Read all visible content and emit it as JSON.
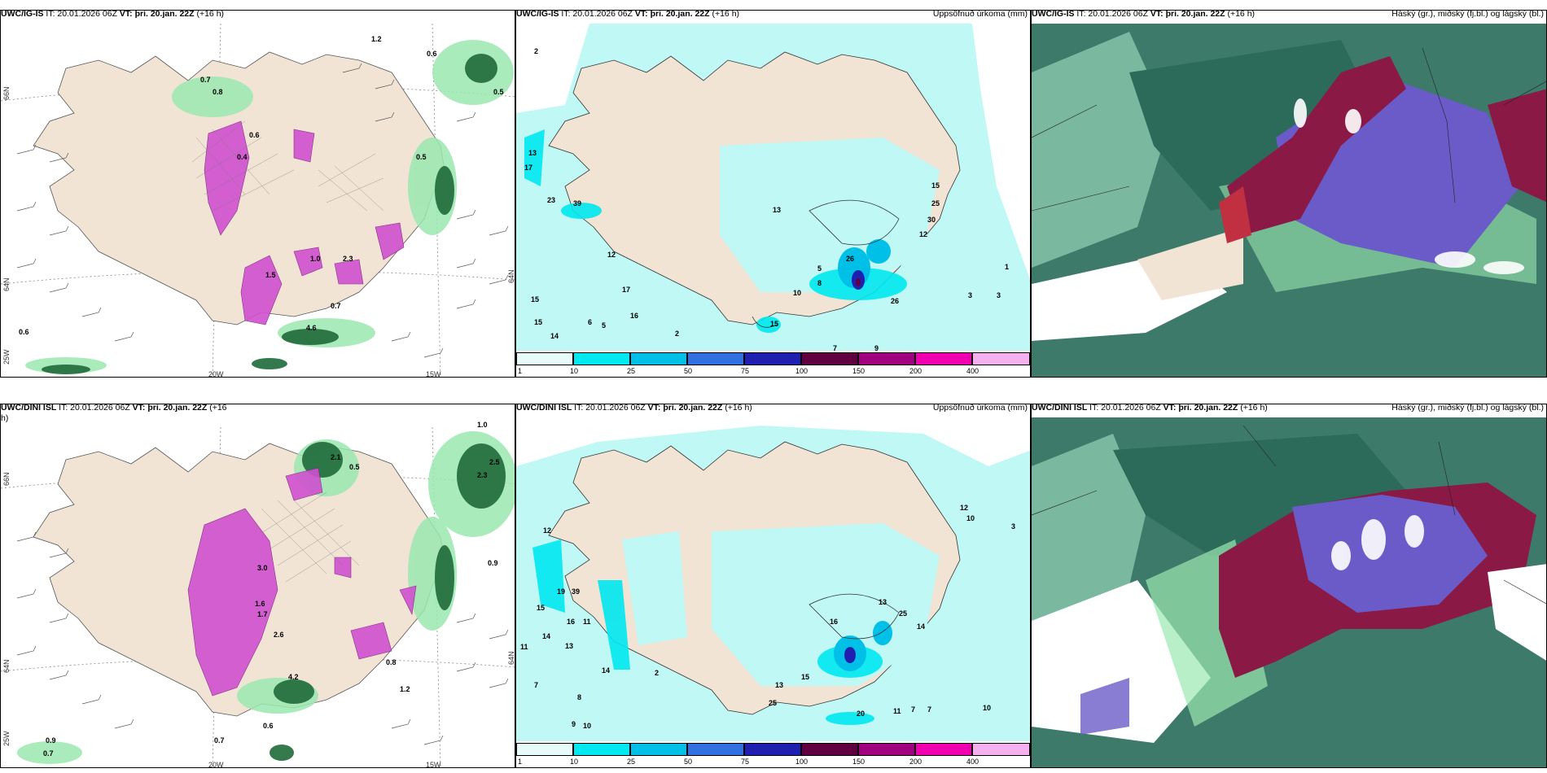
{
  "panels": [
    {
      "model": "UWC/IG-IS",
      "it": "IT: 20.01.2026 06Z",
      "vt_label": "VT:",
      "vt": "þri. 20.jan. 22Z",
      "lead": "(+16 h)",
      "title": "",
      "lat_labels": [
        "66N",
        "64N"
      ],
      "lon_labels": [
        "20W",
        "15W"
      ],
      "edge_labels": [
        "25W",
        "64N"
      ],
      "values": [
        "0.7",
        "0.8",
        "0.4",
        "0.6",
        "1.5",
        "1.0",
        "0.5",
        "0.6",
        "0.5",
        "4.6",
        "0.7",
        "0.6",
        "2.3",
        "1.2"
      ]
    },
    {
      "model": "UWC/IG-IS",
      "it": "IT: 20.01.2026 06Z",
      "vt_label": "VT:",
      "vt": "þri. 20.jan. 22Z",
      "lead": "(+16 h)",
      "title": "Uppsöfnuð úrkoma (mm)",
      "values": [
        "2",
        "13",
        "17",
        "23",
        "39",
        "12",
        "15",
        "15",
        "14",
        "5",
        "6",
        "16",
        "17",
        "2",
        "26",
        "26",
        "15",
        "13",
        "8",
        "10",
        "7",
        "9",
        "5",
        "25",
        "30",
        "12",
        "15",
        "1",
        "3",
        "3"
      ]
    },
    {
      "model": "UWC/IG-IS",
      "it": "IT: 20.01.2026 06Z",
      "vt_label": "VT:",
      "vt": "þri. 20.jan. 22Z",
      "lead": "(+16 h)",
      "title": "Háský (gr.), miðský (fj.bl.) og lágský (bl.)"
    },
    {
      "model": "UWC/DINI ISL",
      "it": "IT: 20.01.2026 06Z",
      "vt_label": "VT:",
      "vt": "þri. 20.jan. 22Z",
      "lead": "(+16",
      "lead2": "h)",
      "title": "",
      "lat_labels": [
        "66N",
        "64N"
      ],
      "lon_labels": [
        "20W",
        "15W"
      ],
      "edge_labels": [
        "25W",
        "64N"
      ],
      "values": [
        "2.1",
        "0.5",
        "3.0",
        "1.6",
        "1.7",
        "2.6",
        "4.2",
        "0.7",
        "0.6",
        "0.9",
        "0.7",
        "2.5",
        "2.3",
        "0.9",
        "1.0",
        "0.8",
        "1.2"
      ]
    },
    {
      "model": "UWC/DINI ISL",
      "it": "IT: 20.01.2026 06Z",
      "vt_label": "VT:",
      "vt": "þri. 20.jan. 22Z",
      "lead": "(+16 h)",
      "title": "Uppsöfnuð úrkoma (mm)",
      "values": [
        "12",
        "19",
        "39",
        "15",
        "14",
        "16",
        "13",
        "11",
        "11",
        "7",
        "8",
        "9",
        "10",
        "2",
        "14",
        "13",
        "25",
        "16",
        "15",
        "13",
        "25",
        "14",
        "12",
        "10",
        "3",
        "20",
        "11",
        "7",
        "7",
        "10"
      ]
    },
    {
      "model": "UWC/DINI ISL",
      "it": "IT: 20.01.2026 06Z",
      "vt_label": "VT:",
      "vt": "þri. 20.jan. 22Z",
      "lead": "(+16 h)",
      "title": "Háský (gr.), miðský (fj.bl.) og lágský (bl.)"
    }
  ],
  "colorbar": {
    "labels": [
      "1",
      "10",
      "25",
      "50",
      "75",
      "100",
      "150",
      "200",
      "400"
    ],
    "colors": [
      "#e8fbfb",
      "#00e8f0",
      "#00c0e8",
      "#3070e0",
      "#2020b0",
      "#600040",
      "#a00080",
      "#f000b0",
      "#f5b0f0"
    ]
  },
  "colors": {
    "land": "#f1e4d5",
    "ocean": "#ffffff",
    "precip_light": "#bff8f5",
    "green_dark": "#1f6a3a",
    "green_light": "#9be8b0",
    "magenta": "#d050d0",
    "cloud_high": "#3d7a6a",
    "cloud_mid": "#6b5bc8",
    "cloud_low": "#8a1a45"
  }
}
